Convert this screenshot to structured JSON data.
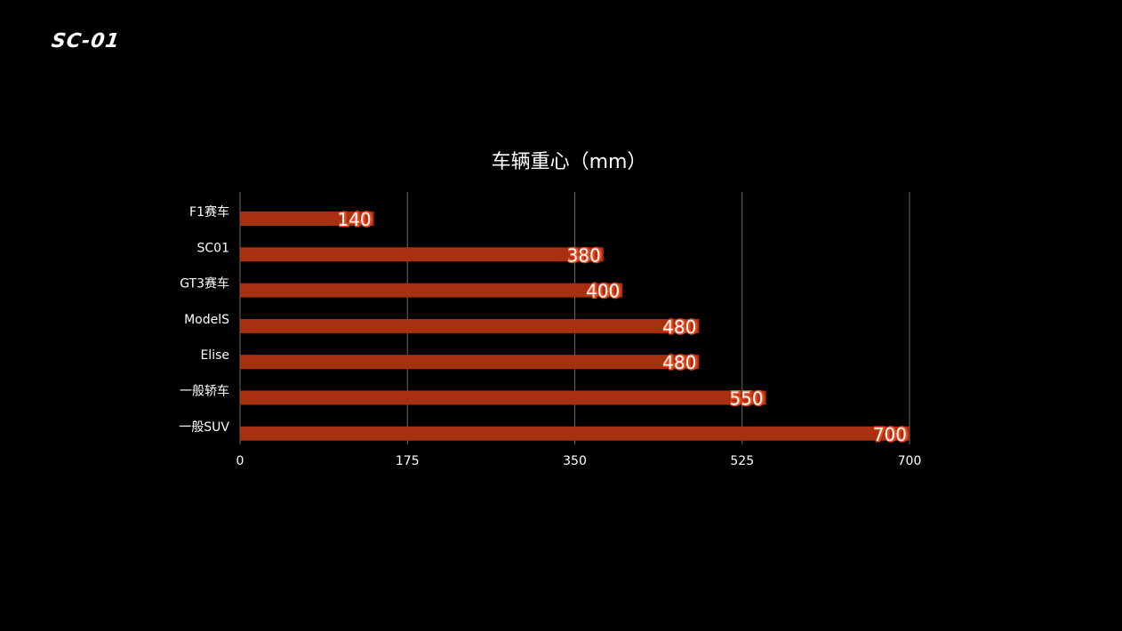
{
  "logo": "SC-01",
  "chart_data": {
    "type": "bar",
    "orientation": "horizontal",
    "title": "车辆重心（mm）",
    "categories": [
      "F1赛车",
      "SC01",
      "GT3赛车",
      "ModelS",
      "Elise",
      "一般轿车",
      "一般SUV"
    ],
    "values": [
      140,
      380,
      400,
      480,
      480,
      550,
      700
    ],
    "xlim": [
      0,
      700
    ],
    "xticks": [
      0,
      175,
      350,
      525,
      700
    ],
    "grid": true,
    "legend": "none",
    "colors": {
      "bar": "#a6300f",
      "label_shadow": "#e8471d",
      "grid": "#6a6a6a",
      "text": "#ffffff"
    }
  }
}
